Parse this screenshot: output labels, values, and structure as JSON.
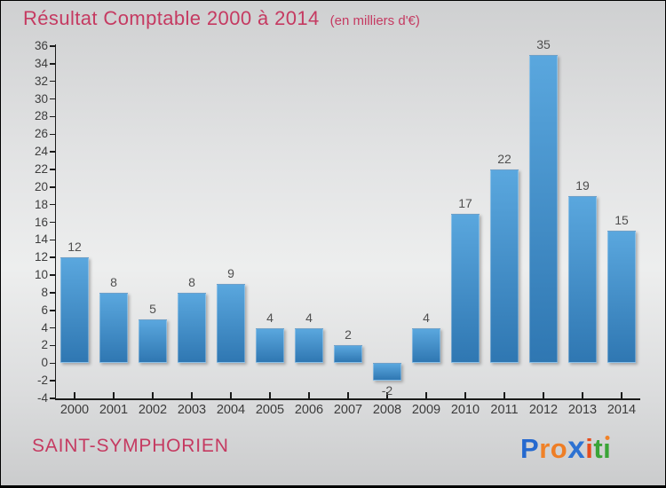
{
  "title": {
    "text": "Résultat Comptable 2000 à 2014",
    "subtitle": "(en milliers d'€)",
    "color": "#c53a61"
  },
  "footer": {
    "place": "SAINT-SYMPHORIEN",
    "place_color": "#c53a61"
  },
  "logo": {
    "name": "Proxiti",
    "letters": [
      {
        "ch": "P",
        "color": "#2569cf"
      },
      {
        "ch": "r",
        "color": "#f08228"
      },
      {
        "ch": "o",
        "color": "#ee7e26"
      },
      {
        "ch": "x",
        "color": "#2d72d2",
        "big": true
      },
      {
        "ch": "i",
        "color": "#e64d1d"
      },
      {
        "ch": "t",
        "color": "#3aa437"
      },
      {
        "ch": "i",
        "color": "#3aa437",
        "dot_color": "#f08228"
      }
    ]
  },
  "chart_data": {
    "type": "bar",
    "title": "Résultat Comptable 2000 à 2014",
    "subtitle": "(en milliers d'€)",
    "categories": [
      "2000",
      "2001",
      "2002",
      "2003",
      "2004",
      "2005",
      "2006",
      "2007",
      "2008",
      "2009",
      "2010",
      "2011",
      "2012",
      "2013",
      "2014"
    ],
    "values": [
      12,
      8,
      5,
      8,
      9,
      4,
      4,
      2,
      -2,
      4,
      17,
      22,
      35,
      19,
      15
    ],
    "xlabel": "",
    "ylabel": "",
    "ylim": [
      -4,
      36
    ],
    "ytick_step": 2,
    "grid": false,
    "legend": "none",
    "bar_color_top": "#5aa7de",
    "bar_color_bottom": "#2f77b2",
    "value_label_color": "#4f4f4f",
    "tick_label_color": "#3c3c3c",
    "axis_color": "#1a1a1a"
  }
}
